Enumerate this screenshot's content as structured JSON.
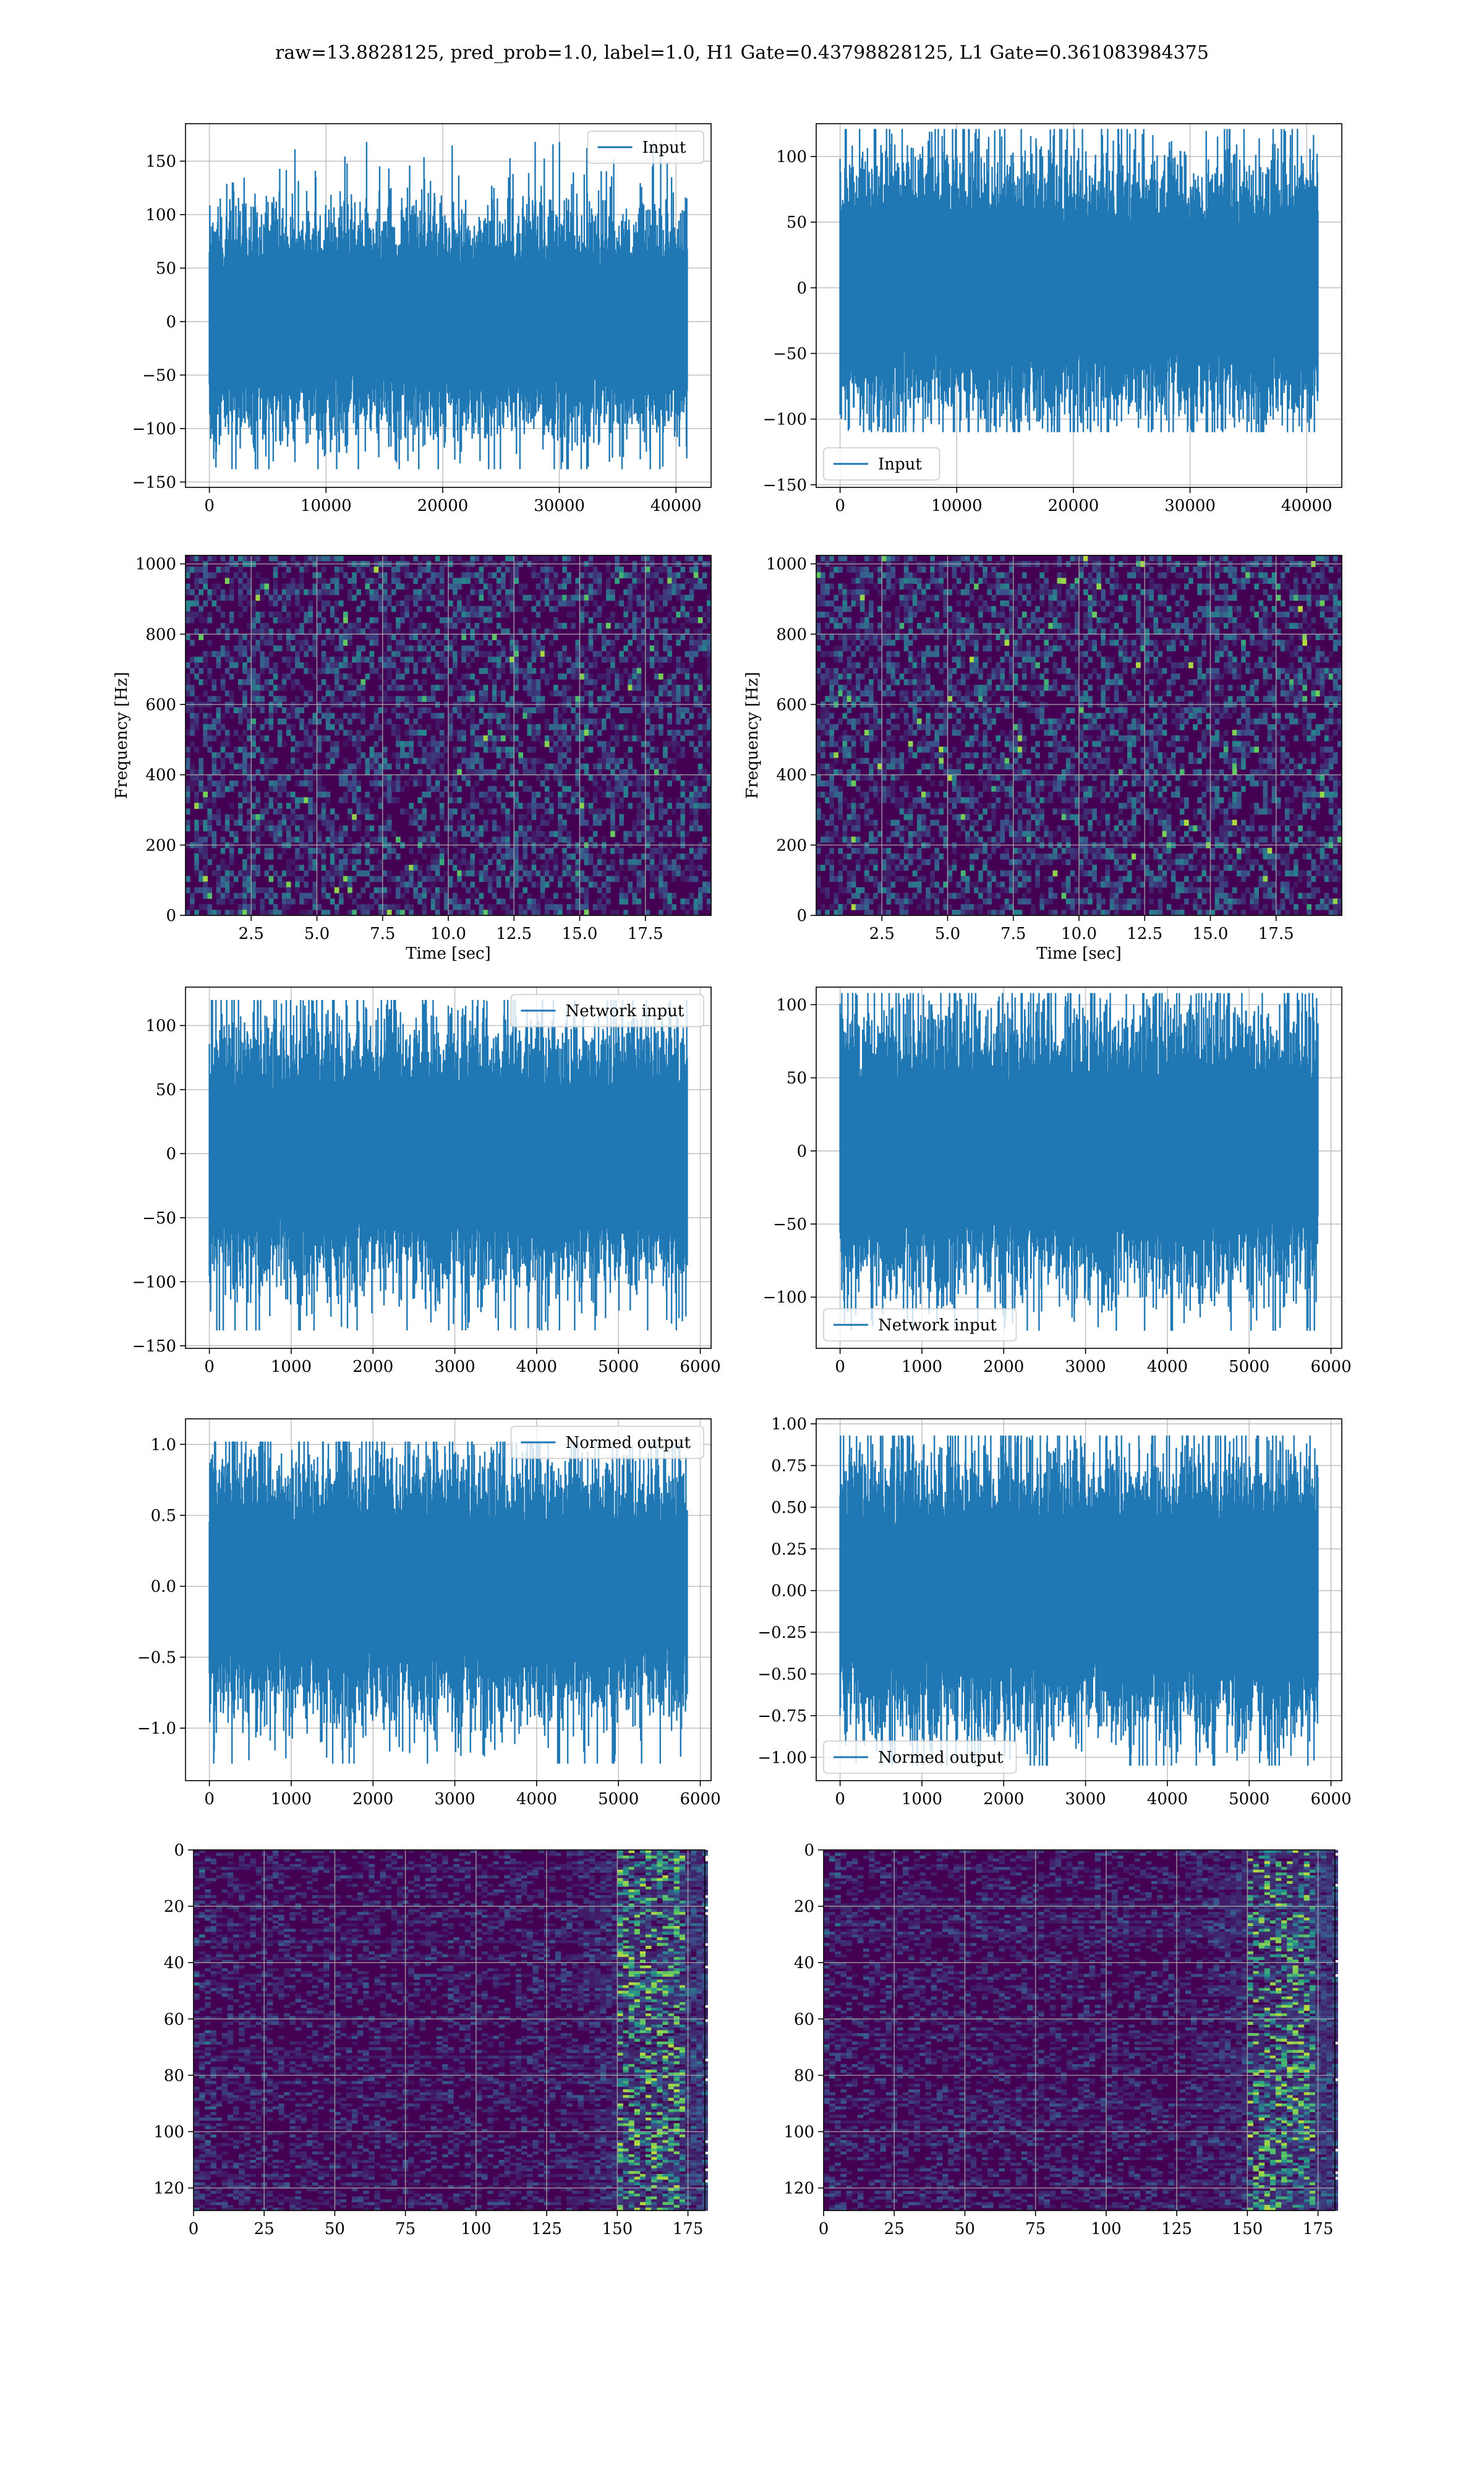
{
  "suptitle": "raw=13.8828125, pred_prob=1.0, label=1.0, H1 Gate=0.43798828125, L1 Gate=0.361083984375",
  "colors": {
    "line": "#1f77b4",
    "grid": "#b0b0b0",
    "viridis_dark": "#440154",
    "viridis_mid": "#3b528b",
    "viridis_teal": "#21918c",
    "viridis_green": "#5ec962",
    "viridis_yellow": "#fde725"
  },
  "chart_data": [
    {
      "id": "h1-input",
      "type": "line",
      "series": [
        {
          "name": "Input",
          "amplitude": 28,
          "max": 168,
          "min": -138
        }
      ],
      "x_range": [
        0,
        40960
      ],
      "xlim": [
        -2048,
        43008
      ],
      "ylim": [
        -155,
        185
      ],
      "xticks": [
        0,
        10000,
        20000,
        30000,
        40000
      ],
      "yticks": [
        -150,
        -100,
        -50,
        0,
        50,
        100,
        150
      ],
      "legend": "upper right",
      "grid": true
    },
    {
      "id": "l1-input",
      "type": "line",
      "series": [
        {
          "name": "Input",
          "amplitude": 26,
          "max": 121,
          "min": -110
        }
      ],
      "x_range": [
        0,
        40960
      ],
      "xlim": [
        -2048,
        43008
      ],
      "ylim": [
        -152,
        125
      ],
      "xticks": [
        0,
        10000,
        20000,
        30000,
        40000
      ],
      "yticks": [
        -150,
        -100,
        -50,
        0,
        50,
        100
      ],
      "legend": "lower left",
      "grid": true
    },
    {
      "id": "h1-spectrogram",
      "type": "heatmap",
      "xlabel": "Time [sec]",
      "ylabel": "Frequency [Hz]",
      "xlim": [
        0,
        20
      ],
      "ylim": [
        0,
        1024
      ],
      "xticks": [
        2.5,
        5.0,
        7.5,
        10.0,
        12.5,
        15.0,
        17.5
      ],
      "yticks": [
        0,
        200,
        400,
        600,
        800,
        1000
      ],
      "grid": true
    },
    {
      "id": "l1-spectrogram",
      "type": "heatmap",
      "xlabel": "Time [sec]",
      "ylabel": "Frequency [Hz]",
      "xlim": [
        0,
        20
      ],
      "ylim": [
        0,
        1024
      ],
      "xticks": [
        2.5,
        5.0,
        7.5,
        10.0,
        12.5,
        15.0,
        17.5
      ],
      "yticks": [
        0,
        200,
        400,
        600,
        800,
        1000
      ],
      "grid": true
    },
    {
      "id": "h1-network-input",
      "type": "line",
      "series": [
        {
          "name": "Network input",
          "amplitude": 27,
          "max": 120,
          "min": -138
        }
      ],
      "x_range": [
        0,
        5840
      ],
      "xlim": [
        -292,
        6132
      ],
      "ylim": [
        -152,
        130
      ],
      "xticks": [
        0,
        1000,
        2000,
        3000,
        4000,
        5000,
        6000
      ],
      "yticks": [
        -150,
        -100,
        -50,
        0,
        50,
        100
      ],
      "legend": "upper right",
      "grid": true
    },
    {
      "id": "l1-network-input",
      "type": "line",
      "series": [
        {
          "name": "Network input",
          "amplitude": 25,
          "max": 108,
          "min": -123
        }
      ],
      "x_range": [
        0,
        5840
      ],
      "xlim": [
        -292,
        6132
      ],
      "ylim": [
        -135,
        112
      ],
      "xticks": [
        0,
        1000,
        2000,
        3000,
        4000,
        5000,
        6000
      ],
      "yticks": [
        -100,
        -50,
        0,
        50,
        100
      ],
      "legend": "lower left",
      "grid": true
    },
    {
      "id": "h1-normed-output",
      "type": "line",
      "series": [
        {
          "name": "Normed output",
          "amplitude": 0.24,
          "max": 1.02,
          "min": -1.25
        }
      ],
      "x_range": [
        0,
        5840
      ],
      "xlim": [
        -292,
        6132
      ],
      "ylim": [
        -1.37,
        1.18
      ],
      "xticks": [
        0,
        1000,
        2000,
        3000,
        4000,
        5000,
        6000
      ],
      "yticks": [
        -1.0,
        -0.5,
        0.0,
        0.5,
        1.0
      ],
      "legend": "upper right",
      "grid": true
    },
    {
      "id": "l1-normed-output",
      "type": "line",
      "series": [
        {
          "name": "Normed output",
          "amplitude": 0.22,
          "max": 0.93,
          "min": -1.05
        }
      ],
      "x_range": [
        0,
        5840
      ],
      "xlim": [
        -292,
        6132
      ],
      "ylim": [
        -1.14,
        1.03
      ],
      "xticks": [
        0,
        1000,
        2000,
        3000,
        4000,
        5000,
        6000
      ],
      "yticks": [
        -1.0,
        -0.75,
        -0.5,
        -0.25,
        0.0,
        0.25,
        0.5,
        0.75,
        1.0
      ],
      "legend": "lower left",
      "grid": true
    },
    {
      "id": "h1-feature-map",
      "type": "heatmap",
      "xlim": [
        0,
        181
      ],
      "ylim": [
        128,
        0
      ],
      "xticks": [
        0,
        25,
        50,
        75,
        100,
        125,
        150,
        175
      ],
      "yticks": [
        0,
        20,
        40,
        60,
        80,
        100,
        120
      ],
      "grid": true
    },
    {
      "id": "l1-feature-map",
      "type": "heatmap",
      "xlim": [
        0,
        181
      ],
      "ylim": [
        128,
        0
      ],
      "xticks": [
        0,
        25,
        50,
        75,
        100,
        125,
        150,
        175
      ],
      "yticks": [
        0,
        20,
        40,
        60,
        80,
        100,
        120
      ],
      "grid": true
    }
  ]
}
